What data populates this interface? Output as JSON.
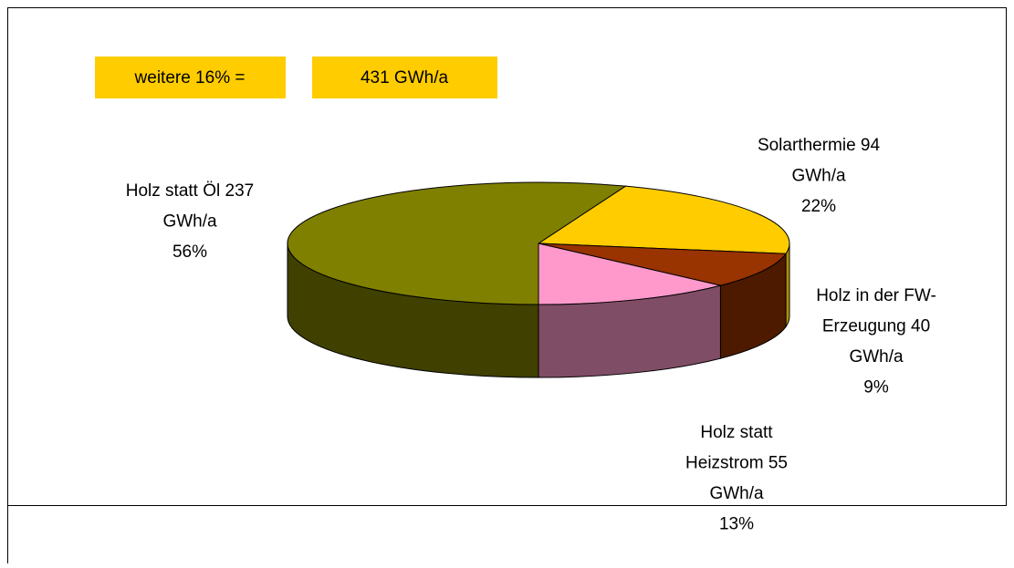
{
  "chart_data": {
    "type": "pie3d",
    "annotations": [
      "weitere 16% =",
      "431 GWh/a"
    ],
    "values": [
      94,
      40,
      55,
      237
    ],
    "value_labels": [
      [
        "Solarthermie 94",
        "GWh/a",
        "22%"
      ],
      [
        "Holz in der FW-",
        "Erzeugung 40",
        "GWh/a",
        "9%"
      ],
      [
        "Holz statt",
        "Heizstrom 55",
        "GWh/a",
        "13%"
      ],
      [
        "Holz statt Öl 237",
        "GWh/a",
        "56%"
      ]
    ],
    "colors": [
      "#ffcc00",
      "#993300",
      "#ff99cc",
      "#808000"
    ],
    "side_colors": [
      "#b38f00",
      "#4d1a00",
      "#804d66",
      "#404000"
    ]
  }
}
